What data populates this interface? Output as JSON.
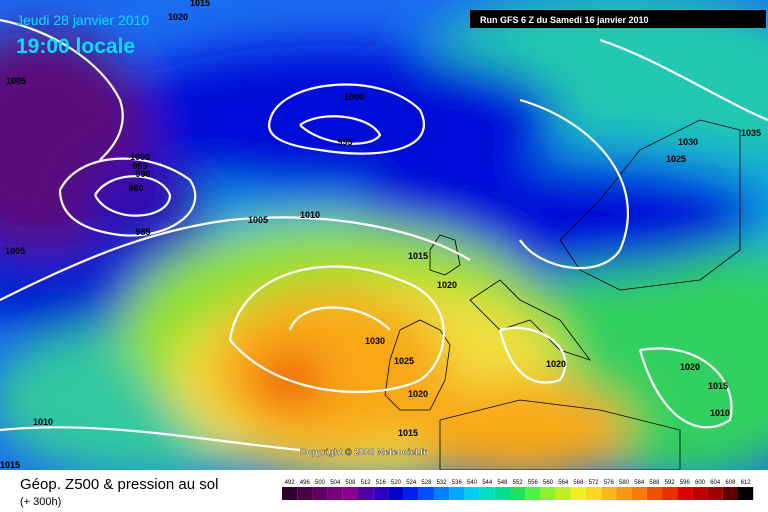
{
  "header": {
    "date": "Jeudi 28 janvier 2010",
    "time": "19:00 locale",
    "run": "Run GFS 6 Z du Samedi 16 janvier 2010"
  },
  "copyright": "Copyright © 2008 Meteociel.fr",
  "footer": {
    "title": "Géop. Z500 & pression au sol",
    "lead": "(+ 300h)"
  },
  "scale": [
    492,
    496,
    500,
    504,
    508,
    512,
    516,
    520,
    524,
    528,
    532,
    536,
    540,
    544,
    548,
    552,
    556,
    560,
    564,
    568,
    572,
    576,
    580,
    584,
    588,
    592,
    596,
    600,
    604,
    608,
    612
  ],
  "isobar_labels": [
    1015,
    1020,
    1005,
    1000,
    995,
    1000,
    995,
    990,
    980,
    985,
    1005,
    1010,
    1005,
    1015,
    1020,
    1030,
    1025,
    1020,
    1020,
    1020,
    1015,
    1010,
    1015,
    1010,
    1015,
    1030,
    1025,
    1035
  ]
}
